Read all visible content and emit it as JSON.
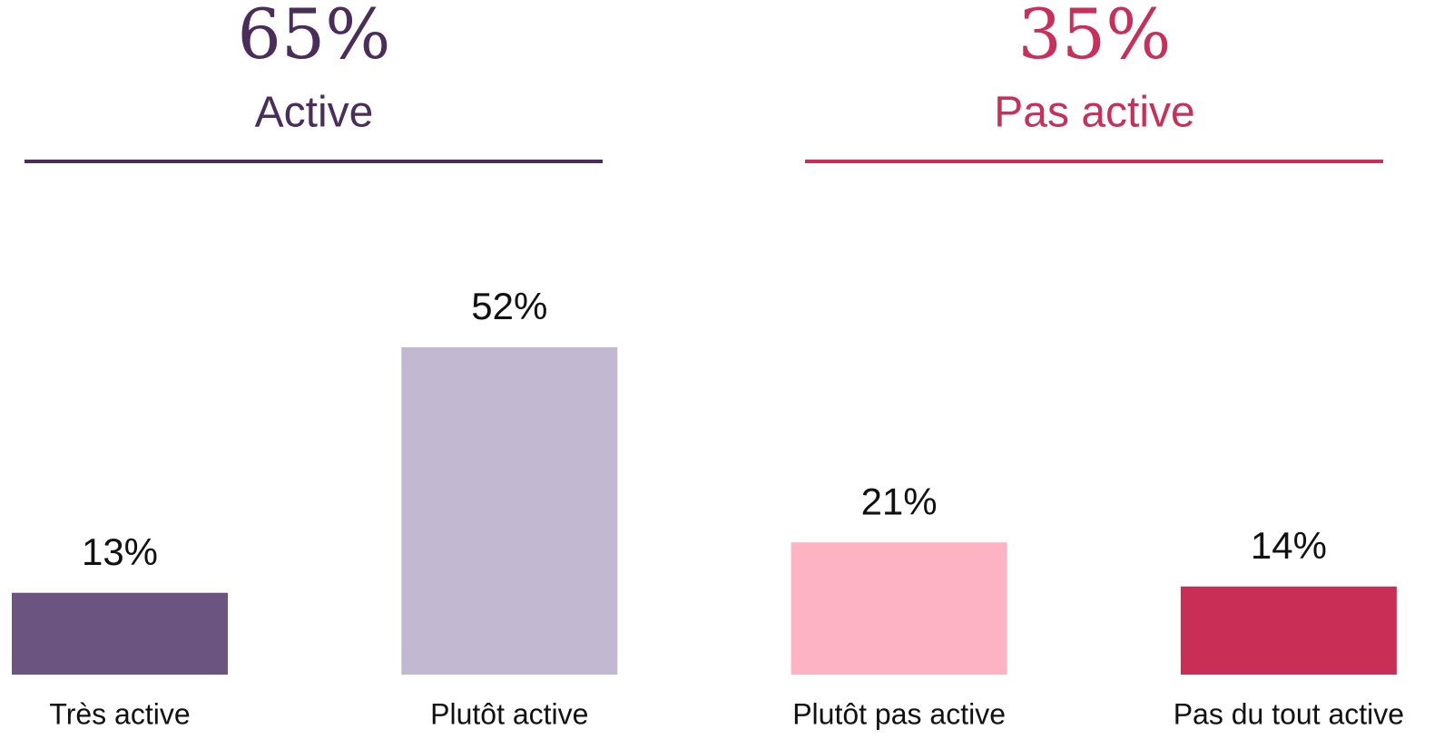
{
  "chart_data": {
    "type": "bar",
    "categories": [
      "Très active",
      "Plutôt active",
      "Plutôt pas active",
      "Pas du tout active"
    ],
    "values": [
      13,
      52,
      21,
      14
    ],
    "value_labels": [
      "13%",
      "52%",
      "21%",
      "14%"
    ],
    "colors": [
      "#6b5580",
      "#c3b8d1",
      "#fdb3c3",
      "#c92f56"
    ],
    "groups": [
      {
        "name": "Active",
        "value": 65,
        "label": "65%",
        "color": "#4b2d5c"
      },
      {
        "name": "Pas active",
        "value": 35,
        "label": "35%",
        "color": "#c8305a"
      }
    ]
  }
}
